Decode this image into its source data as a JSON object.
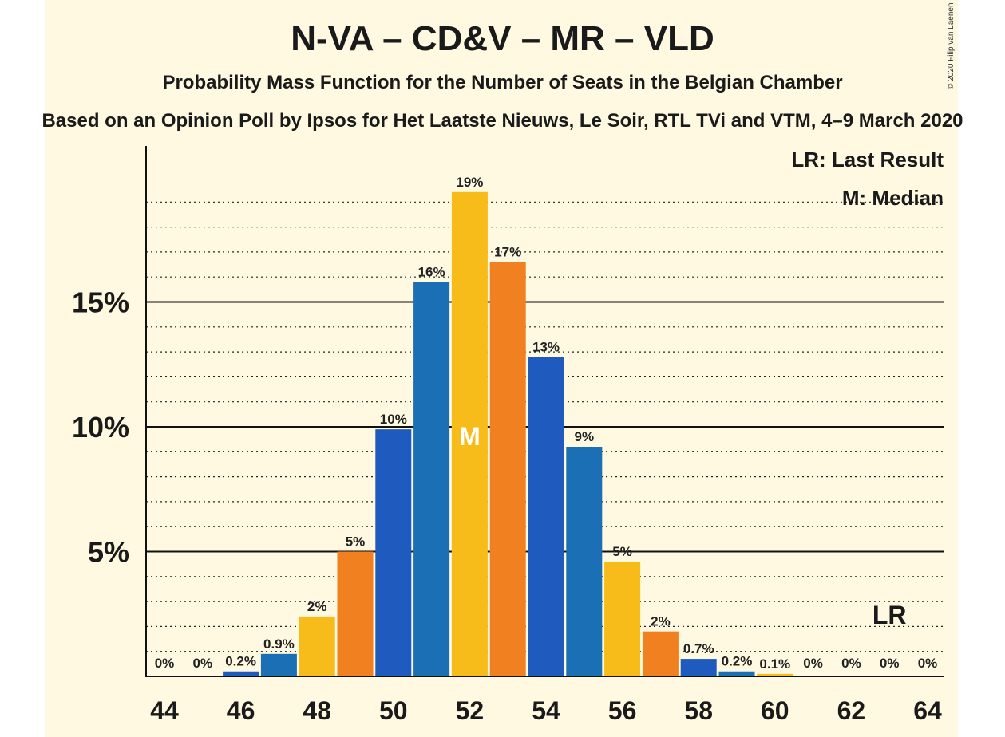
{
  "chart_data": {
    "type": "bar",
    "title": "N-VA – CD&V – MR – VLD",
    "subtitle": "Probability Mass Function for the Number of Seats in the Belgian Chamber",
    "subtitle2": "Based on an Opinion Poll by Ipsos for Het Laatste Nieuws, Le Soir, RTL TVi and VTM, 4–9 March 2020",
    "copyright": "© 2020 Filip van Laenen",
    "categories": [
      44,
      45,
      46,
      47,
      48,
      49,
      50,
      51,
      52,
      53,
      54,
      55,
      56,
      57,
      58,
      59,
      60,
      61,
      62,
      63,
      64
    ],
    "values": [
      0,
      0,
      0.2,
      0.9,
      2.4,
      5.0,
      9.9,
      15.8,
      19.4,
      16.6,
      12.8,
      9.2,
      4.6,
      1.8,
      0.7,
      0.2,
      0.1,
      0,
      0,
      0,
      0
    ],
    "labels": [
      "0%",
      "0%",
      "0.2%",
      "0.9%",
      "2%",
      "5%",
      "10%",
      "16%",
      "19%",
      "17%",
      "13%",
      "9%",
      "5%",
      "2%",
      "0.7%",
      "0.2%",
      "0.1%",
      "0%",
      "0%",
      "0%",
      "0%"
    ],
    "bar_colors": [
      "#1f5bbf",
      "#1a6fb5",
      "#f7bc1a",
      "#f08020"
    ],
    "xticks": [
      "44",
      "46",
      "48",
      "50",
      "52",
      "54",
      "56",
      "58",
      "60",
      "62",
      "64"
    ],
    "yticks": [
      {
        "value": 5,
        "label": "5%"
      },
      {
        "value": 10,
        "label": "10%"
      },
      {
        "value": 15,
        "label": "15%"
      }
    ],
    "ylim": [
      0,
      21
    ],
    "median_seat": 52,
    "median_mark": "M",
    "last_result_seat": 63,
    "last_result_mark": "LR",
    "legend": [
      "LR: Last Result",
      "M: Median"
    ],
    "legend_position": "top-right",
    "grid": true
  }
}
